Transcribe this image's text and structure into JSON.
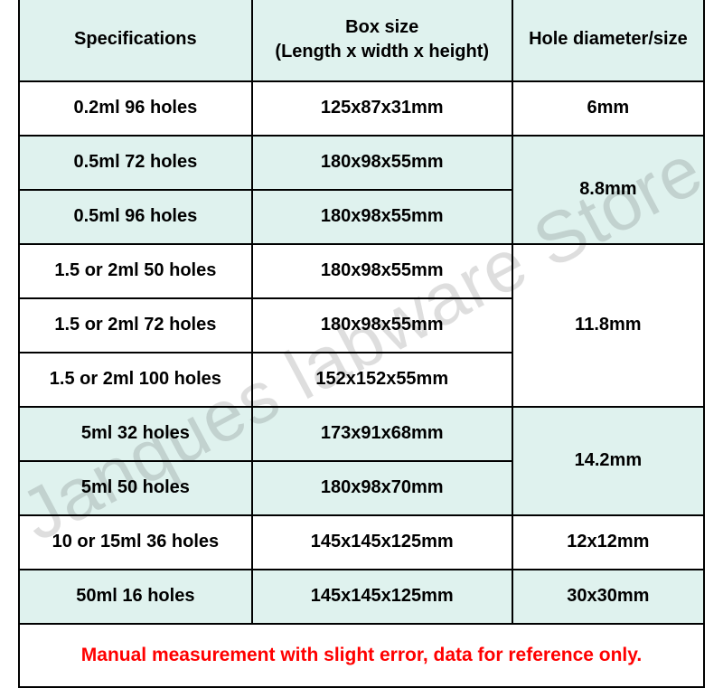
{
  "watermark_text": "Janques labware Store",
  "columns": [
    "Specifications",
    "Box size\n(Length x width x height)",
    "Hole diameter/size"
  ],
  "footer_note": "Manual measurement with slight error, data for reference only.",
  "colors": {
    "tint_bg": "#dff2ee",
    "plain_bg": "#ffffff",
    "border": "#000000",
    "footer_text": "#ff0000",
    "watermark": "rgba(0,0,0,0.13)"
  },
  "rows": [
    {
      "spec": "0.2ml 96 holes",
      "box": "125x87x31mm"
    },
    {
      "spec": "0.5ml 72 holes",
      "box": "180x98x55mm"
    },
    {
      "spec": "0.5ml 96 holes",
      "box": "180x98x55mm"
    },
    {
      "spec": "1.5 or 2ml 50 holes",
      "box": "180x98x55mm"
    },
    {
      "spec": "1.5 or 2ml 72 holes",
      "box": "180x98x55mm"
    },
    {
      "spec": "1.5 or 2ml 100 holes",
      "box": "152x152x55mm"
    },
    {
      "spec": "5ml 32 holes",
      "box": "173x91x68mm"
    },
    {
      "spec": "5ml 50 holes",
      "box": "180x98x70mm"
    },
    {
      "spec": "10 or 15ml 36 holes",
      "box": "145x145x125mm"
    },
    {
      "spec": "50ml 16 holes",
      "box": "145x145x125mm"
    }
  ],
  "hole_groups": [
    {
      "label": "6mm",
      "span": 1
    },
    {
      "label": "8.8mm",
      "span": 2
    },
    {
      "label": "11.8mm",
      "span": 3
    },
    {
      "label": "14.2mm",
      "span": 2
    },
    {
      "label": "12x12mm",
      "span": 1
    },
    {
      "label": "30x30mm",
      "span": 1
    }
  ],
  "row_tint_pattern": [
    "plain",
    "tint",
    "tint",
    "plain",
    "plain",
    "plain",
    "tint",
    "tint",
    "plain",
    "tint"
  ],
  "hole_cell_bg": [
    "plain",
    "tint",
    "plain",
    "tint",
    "plain",
    "tint"
  ]
}
